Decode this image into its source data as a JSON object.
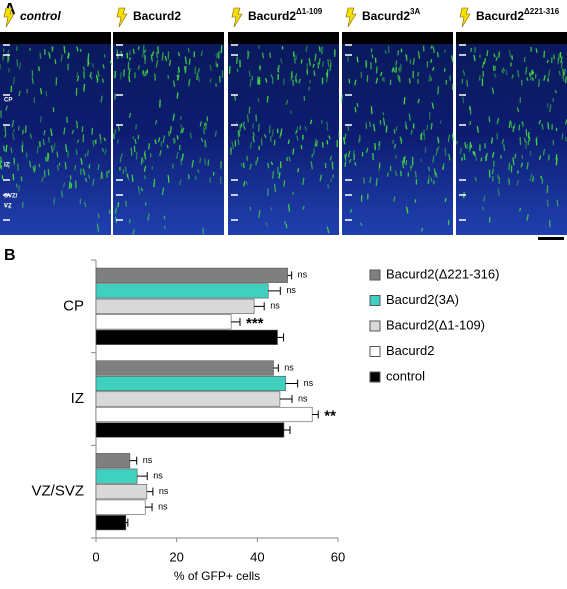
{
  "panel_a": {
    "letter": "A",
    "panels": [
      {
        "text": "control"
      },
      {
        "text": "Bacurd2"
      },
      {
        "text": "Bacurd2",
        "sup": "Δ1-109"
      },
      {
        "text": "Bacurd2",
        "sup": "3A"
      },
      {
        "text": "Bacurd2",
        "sup": "Δ221-316"
      }
    ],
    "zones": [
      "CP",
      "IZ",
      "SVZ/",
      "VZ"
    ]
  },
  "chart_data": {
    "type": "hbar",
    "letter": "B",
    "xlabel": "% of GFP+ cells",
    "categories": [
      "CP",
      "IZ",
      "VZ/SVZ"
    ],
    "series": [
      {
        "name": "Bacurd2(Δ221-316)",
        "color": "#7f7f7f",
        "values": [
          47.5,
          44,
          8.4
        ],
        "errors": [
          1,
          1.2,
          1.7
        ],
        "significance": [
          "ns",
          "ns",
          "ns"
        ]
      },
      {
        "name": "Bacurd2(3A)",
        "color": "#40d0c0",
        "values": [
          42.7,
          47,
          10.2
        ],
        "errors": [
          3,
          3,
          2.5
        ],
        "significance": [
          "ns",
          "ns",
          "ns"
        ]
      },
      {
        "name": "Bacurd2(Δ1-109)",
        "color": "#d9d9d9",
        "values": [
          39.2,
          45.6,
          12.6
        ],
        "errors": [
          2.5,
          3,
          1.5
        ],
        "significance": [
          "ns",
          "ns",
          "ns"
        ]
      },
      {
        "name": "Bacurd2",
        "color": "#ffffff",
        "values": [
          33.5,
          53.6,
          12.2
        ],
        "errors": [
          2.2,
          1.5,
          1.7
        ],
        "significance": [
          "***",
          "**",
          "ns"
        ]
      },
      {
        "name": "control",
        "color": "#000000",
        "values": [
          45,
          46.6,
          7.4
        ],
        "errors": [
          1.5,
          1.5,
          0.5
        ]
      }
    ],
    "xlim": [
      0,
      60
    ],
    "xticks": [
      0,
      20,
      40,
      60
    ]
  }
}
